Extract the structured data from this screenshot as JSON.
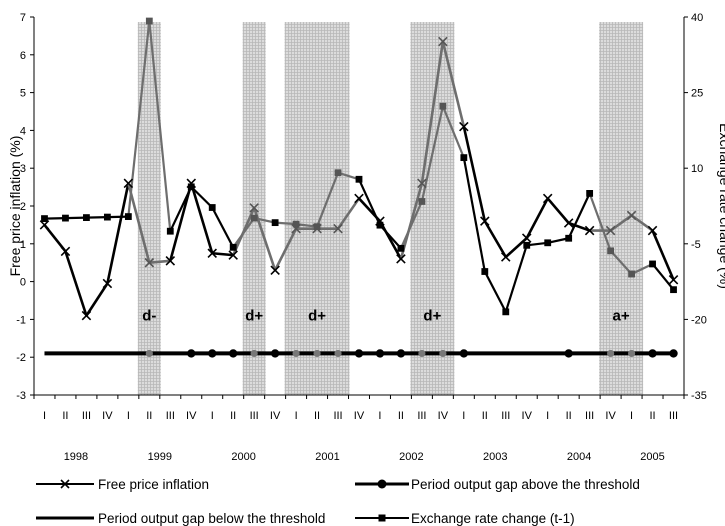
{
  "chart_data": {
    "type": "line",
    "categories": [
      "I",
      "II",
      "III",
      "IV",
      "I",
      "II",
      "III",
      "IV",
      "I",
      "II",
      "III",
      "IV",
      "I",
      "II",
      "III",
      "IV",
      "I",
      "II",
      "III",
      "IV",
      "I",
      "II",
      "III",
      "IV",
      "I",
      "II",
      "III",
      "IV",
      "I",
      "II",
      "III"
    ],
    "years": [
      {
        "label": "1998",
        "start": 0,
        "end": 3
      },
      {
        "label": "1999",
        "start": 4,
        "end": 7
      },
      {
        "label": "2000",
        "start": 8,
        "end": 11
      },
      {
        "label": "2001",
        "start": 12,
        "end": 15
      },
      {
        "label": "2002",
        "start": 16,
        "end": 19
      },
      {
        "label": "2003",
        "start": 20,
        "end": 23
      },
      {
        "label": "2004",
        "start": 24,
        "end": 27
      },
      {
        "label": "2005",
        "start": 28,
        "end": 30
      }
    ],
    "y_left": {
      "label": "Free price inflation (%)",
      "ylim": [
        -3,
        7
      ],
      "ticks": [
        -3,
        -2,
        -1,
        0,
        1,
        2,
        3,
        4,
        5,
        6,
        7
      ]
    },
    "y_right": {
      "label": "Exchange rate change (%)",
      "ylim": [
        -35,
        40
      ],
      "ticks": [
        -35,
        -20,
        -5,
        10,
        25,
        40
      ]
    },
    "series": [
      {
        "name": "Free price inflation",
        "axis": "left",
        "marker": "x",
        "values": [
          1.5,
          0.8,
          -0.9,
          -0.05,
          2.6,
          0.5,
          0.55,
          2.6,
          0.75,
          0.7,
          1.95,
          0.3,
          1.4,
          1.4,
          1.4,
          2.2,
          1.6,
          0.6,
          2.6,
          6.35,
          4.1,
          1.6,
          0.65,
          1.15,
          2.2,
          1.55,
          1.35,
          1.35,
          1.75,
          1.35,
          0.05
        ]
      },
      {
        "name": "Exchange rate change (t-1)",
        "axis": "right",
        "marker": "square",
        "values": [
          0.0,
          0.1,
          0.2,
          0.3,
          0.4,
          39.2,
          -2.5,
          6.3,
          2.2,
          -5.7,
          0.1,
          -0.8,
          -1.1,
          -1.6,
          9.1,
          7.8,
          -1.3,
          -5.9,
          3.4,
          22.3,
          12.1,
          -10.5,
          -18.5,
          -5.3,
          -4.8,
          -3.9,
          5.0,
          -6.4,
          -11.0,
          -9.0,
          -14.1
        ]
      },
      {
        "name": "Period output gap above the threshold",
        "axis": "left",
        "marker": "circle",
        "values": [
          -1.9,
          -1.9,
          -1.9,
          -1.9,
          -1.9,
          -1.9,
          -1.9,
          -1.9,
          -1.9,
          -1.9,
          -1.9,
          -1.9,
          -1.9,
          -1.9,
          -1.9,
          -1.9,
          -1.9,
          -1.9,
          -1.9,
          -1.9,
          -1.9,
          -1.9,
          -1.9,
          -1.9,
          -1.9,
          -1.9,
          -1.9,
          -1.9,
          -1.9,
          -1.9,
          -1.9
        ],
        "marker_indices": [
          7,
          8,
          9,
          11,
          15,
          16,
          17,
          20,
          25,
          29,
          30
        ]
      },
      {
        "name": "Period output gap below the threshold",
        "axis": "left",
        "marker": "none",
        "values": [
          -1.9,
          -1.9,
          -1.9,
          -1.9,
          -1.9,
          -1.9,
          -1.9,
          -1.9,
          -1.9,
          -1.9,
          -1.9,
          -1.9,
          -1.9,
          -1.9,
          -1.9,
          -1.9,
          -1.9,
          -1.9,
          -1.9,
          -1.9,
          -1.9,
          -1.9,
          -1.9,
          -1.9,
          -1.9,
          -1.9,
          -1.9,
          -1.9,
          -1.9,
          -1.9,
          -1.9
        ]
      }
    ],
    "shaded_periods": [
      {
        "label": "d-",
        "start": 5,
        "end": 5
      },
      {
        "label": "d+",
        "start": 10,
        "end": 10
      },
      {
        "label": "d+",
        "start": 12,
        "end": 14
      },
      {
        "label": "d+",
        "start": 18,
        "end": 19
      },
      {
        "label": "a+",
        "start": 27,
        "end": 28
      }
    ],
    "legend": {
      "placement": "bottom",
      "entries": [
        "Free price inflation",
        "Period output gap above the threshold",
        "Period output gap below the threshold",
        "Exchange rate change (t-1)"
      ]
    },
    "grid": false
  }
}
